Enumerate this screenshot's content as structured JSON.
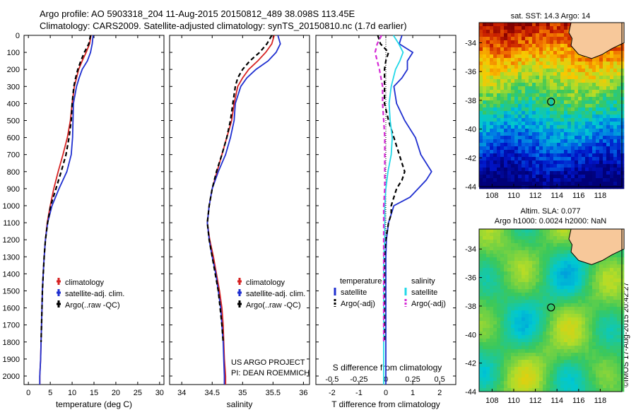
{
  "header": {
    "line1": "Argo profile: AO 5903318_204 11-Aug-2015 20150812_489 38.098S 113.45E",
    "line2": "Climatology: CARS2009. Satellite-adjusted climatology: synTS_20150810.nc (1.7d earlier)"
  },
  "credit": {
    "project": "US ARGO PROJECT",
    "pi": "PI: DEAN ROEMMICH"
  },
  "watermark": "©IMOS 17-Aug-2015 20:42:27",
  "colors": {
    "climatology": "#d62222",
    "satellite": "#1f2fd0",
    "argo": "#000000",
    "sal_satellite": "#22d8e8",
    "sal_argo": "#d62ad6",
    "land": "#f7c89a"
  },
  "chart_data": [
    {
      "type": "line",
      "id": "temperature",
      "xlabel": "temperature (deg C)",
      "ylabel": "",
      "xlim": [
        -1,
        31
      ],
      "ylim": [
        2050,
        0
      ],
      "xticks": [
        0,
        5,
        10,
        15,
        20,
        25,
        30
      ],
      "yticks": [
        0,
        100,
        200,
        300,
        400,
        500,
        600,
        700,
        800,
        900,
        1000,
        1100,
        1200,
        1300,
        1400,
        1500,
        1600,
        1700,
        1800,
        1900,
        2000
      ],
      "legend": [
        "climatology",
        "satellite-adj. clim.",
        "Argo(..raw -QC)"
      ],
      "series": [
        {
          "name": "climatology",
          "depth": [
            0,
            50,
            100,
            150,
            200,
            250,
            300,
            400,
            500,
            600,
            700,
            800,
            900,
            1000,
            1100,
            1200,
            1300,
            1400,
            1500,
            1600,
            1700,
            1800,
            1900,
            2000,
            2050
          ],
          "values": [
            14.3,
            14.0,
            13.2,
            12.3,
            11.5,
            11.0,
            10.5,
            10.0,
            9.6,
            8.9,
            7.9,
            6.8,
            5.8,
            5.0,
            4.3,
            3.9,
            3.6,
            3.4,
            3.2,
            3.1,
            3.0,
            2.9,
            2.8,
            2.6,
            2.6
          ]
        },
        {
          "name": "satellite-adj. clim.",
          "depth": [
            0,
            50,
            100,
            150,
            200,
            250,
            300,
            400,
            500,
            600,
            700,
            800,
            900,
            1000,
            1100,
            1200,
            1300,
            1400,
            1500,
            1600,
            1700,
            1800,
            1900,
            2000,
            2050
          ],
          "values": [
            14.8,
            14.6,
            14.2,
            13.5,
            12.3,
            11.6,
            11.0,
            10.3,
            10.2,
            10.1,
            9.8,
            8.8,
            7.0,
            5.4,
            4.4,
            3.9,
            3.6,
            3.4,
            3.2,
            3.1,
            3.0,
            2.9,
            2.8,
            2.6,
            2.6
          ]
        },
        {
          "name": "Argo(..raw -QC)",
          "depth": [
            0,
            50,
            100,
            150,
            200,
            250,
            300,
            400,
            500,
            600,
            700,
            800,
            900,
            1000,
            1100,
            1200,
            1300,
            1400,
            1500,
            1600,
            1700,
            1800
          ],
          "values": [
            14.2,
            13.8,
            12.8,
            12.0,
            11.3,
            10.8,
            10.4,
            10.0,
            9.8,
            9.3,
            8.6,
            7.5,
            6.3,
            5.1,
            4.4,
            3.9,
            3.6,
            3.4,
            3.2,
            3.1,
            3.0,
            2.9
          ]
        }
      ]
    },
    {
      "type": "line",
      "id": "salinity",
      "xlabel": "salinity",
      "xlim": [
        33.8,
        36.1
      ],
      "ylim": [
        2050,
        0
      ],
      "xticks": [
        34,
        34.5,
        35,
        35.5,
        36
      ],
      "legend": [
        "climatology",
        "satellite-adj. clim.",
        "Argo(..raw -QC)"
      ],
      "series": [
        {
          "name": "climatology",
          "depth": [
            0,
            50,
            100,
            150,
            200,
            250,
            300,
            400,
            500,
            600,
            700,
            800,
            900,
            1000,
            1100,
            1200,
            1300,
            1400,
            1500,
            1600,
            1700,
            1800,
            1900,
            2000,
            2050
          ],
          "values": [
            35.52,
            35.48,
            35.38,
            35.25,
            35.1,
            35.0,
            34.92,
            34.86,
            34.82,
            34.74,
            34.66,
            34.58,
            34.5,
            34.45,
            34.42,
            34.46,
            34.52,
            34.57,
            34.62,
            34.66,
            34.68,
            34.69,
            34.7,
            34.72,
            34.72
          ]
        },
        {
          "name": "satellite-adj. clim.",
          "depth": [
            0,
            50,
            100,
            150,
            200,
            250,
            300,
            400,
            500,
            600,
            700,
            800,
            900,
            1000,
            1100,
            1200,
            1300,
            1400,
            1500,
            1600,
            1700,
            1800,
            1900,
            2000,
            2050
          ],
          "values": [
            35.58,
            35.62,
            35.55,
            35.42,
            35.22,
            35.07,
            34.97,
            34.88,
            34.86,
            34.8,
            34.72,
            34.6,
            34.5,
            34.45,
            34.42,
            34.45,
            34.5,
            34.56,
            34.6,
            34.64,
            34.66,
            34.68,
            34.69,
            34.7,
            34.7
          ]
        },
        {
          "name": "Argo(..raw -QC)",
          "depth": [
            0,
            50,
            100,
            150,
            200,
            250,
            300,
            400,
            500,
            600,
            700,
            800,
            900,
            1000,
            1100,
            1200,
            1300,
            1400,
            1500,
            1600,
            1700,
            1800
          ],
          "values": [
            35.48,
            35.4,
            35.28,
            35.12,
            35.0,
            34.92,
            34.88,
            34.84,
            34.8,
            34.74,
            34.66,
            34.57,
            34.5,
            34.45,
            34.42,
            34.45,
            34.5,
            34.55,
            34.6,
            34.63,
            34.66,
            34.68
          ]
        }
      ]
    },
    {
      "type": "line",
      "id": "difference",
      "xlabel": "T difference from climatology",
      "xlabel_top": "S difference from climatology",
      "xlim": [
        -2.6,
        2.6
      ],
      "ylim": [
        2050,
        0
      ],
      "xticks": [
        -2,
        -1,
        0,
        1,
        2
      ],
      "xticks_top": [
        -0.5,
        -0.25,
        0,
        0.25,
        0.5
      ],
      "legend_titles": [
        "temperature",
        "salinity"
      ],
      "legend": [
        "satellite",
        "Argo(-adj)",
        "satellite",
        "Argo(-adj)"
      ],
      "series": [
        {
          "name": "satellite",
          "variable": "T",
          "depth": [
            0,
            50,
            100,
            150,
            200,
            250,
            300,
            400,
            500,
            600,
            700,
            800,
            850,
            900,
            950,
            1000,
            1100,
            1200,
            1300,
            1400,
            1500,
            1600,
            1700,
            1800,
            1900,
            2000,
            2050
          ],
          "values": [
            0.6,
            0.5,
            1.0,
            0.8,
            0.8,
            0.6,
            0.3,
            0.4,
            0.7,
            1.1,
            1.3,
            1.7,
            1.5,
            1.2,
            0.9,
            0.3,
            0.1,
            0.02,
            0.0,
            0.0,
            0.0,
            0.0,
            0.0,
            0.0,
            0.0,
            0.0,
            0.0
          ]
        },
        {
          "name": "Argo(-adj)",
          "variable": "T",
          "depth": [
            0,
            50,
            100,
            150,
            200,
            300,
            400,
            500,
            600,
            700,
            750,
            800,
            850,
            900,
            950,
            1000,
            1050,
            1100,
            1200,
            1300,
            1400,
            1500,
            1600,
            1700,
            1800
          ],
          "values": [
            -0.3,
            -0.2,
            0.1,
            0.0,
            -0.05,
            -0.05,
            -0.05,
            0.1,
            0.3,
            0.5,
            0.6,
            0.7,
            0.6,
            0.4,
            0.3,
            0.2,
            0.2,
            0.1,
            0.0,
            -0.05,
            -0.05,
            -0.05,
            -0.05,
            -0.05,
            -0.05
          ]
        },
        {
          "name": "satellite",
          "variable": "S",
          "depth": [
            0,
            50,
            100,
            150,
            200,
            300,
            400,
            500,
            600,
            700,
            800,
            900,
            1000,
            1100,
            1200,
            1300,
            1400,
            1500,
            1600,
            1700,
            1800,
            1900,
            2000,
            2050
          ],
          "values": [
            0.07,
            0.12,
            0.16,
            0.13,
            0.09,
            0.05,
            0.03,
            0.04,
            0.06,
            0.05,
            0.02,
            0.0,
            -0.01,
            -0.01,
            -0.01,
            -0.02,
            -0.02,
            -0.02,
            -0.02,
            -0.02,
            -0.02,
            -0.02,
            -0.02,
            -0.02
          ]
        },
        {
          "name": "Argo(-adj)",
          "variable": "S",
          "depth": [
            0,
            50,
            100,
            150,
            200,
            300,
            400,
            500,
            600,
            700,
            800,
            900,
            1000,
            1100,
            1200,
            1300,
            1400,
            1500,
            1600,
            1700,
            1800
          ],
          "values": [
            -0.04,
            -0.08,
            -0.1,
            -0.08,
            -0.06,
            -0.03,
            -0.03,
            -0.02,
            -0.01,
            -0.01,
            -0.01,
            -0.01,
            -0.02,
            -0.02,
            -0.02,
            -0.02,
            -0.02,
            -0.02,
            -0.02,
            -0.02,
            -0.02
          ]
        }
      ]
    },
    {
      "type": "heatmap",
      "id": "sst_map",
      "title": "sat. SST: 14.3 Argo: 14",
      "xlim": [
        106.8,
        120
      ],
      "ylim": [
        -44,
        -32.6
      ],
      "xticks": [
        108,
        110,
        112,
        114,
        116,
        118
      ],
      "yticks": [
        -34,
        -36,
        -38,
        -40,
        -42,
        -44
      ],
      "marker": {
        "lon": 113.45,
        "lat": -38.098
      }
    },
    {
      "type": "heatmap",
      "id": "sla_map",
      "title_line1": "Altim. SLA: 0.077",
      "title_line2": "Argo h1000: 0.0024 h2000: NaN",
      "xlim": [
        106.8,
        120
      ],
      "ylim": [
        -44,
        -32.6
      ],
      "xticks": [
        108,
        110,
        112,
        114,
        116,
        118
      ],
      "yticks": [
        -34,
        -36,
        -38,
        -40,
        -42,
        -44
      ],
      "marker": {
        "lon": 113.45,
        "lat": -38.098
      }
    }
  ]
}
